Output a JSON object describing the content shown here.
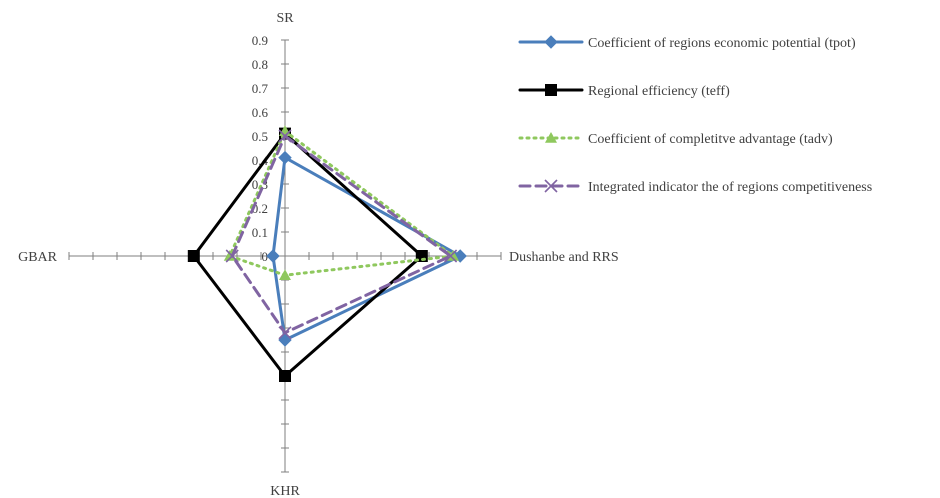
{
  "chart_data": {
    "type": "radar",
    "axes": [
      "SR",
      "Dushanbe and RRS",
      "KHR",
      "GBAR"
    ],
    "r_range": [
      0,
      0.9
    ],
    "r_ticks": [
      "0",
      "0.1",
      "0.2",
      "0.3",
      "0.4",
      "0.5",
      "0.6",
      "0.7",
      "0.8",
      "0.9"
    ],
    "legend_position": "right",
    "series": [
      {
        "name": "Coefficient of regions economic potential (tpot)",
        "values": [
          0.41,
          0.73,
          0.35,
          0.05
        ],
        "color": "#4a7ebb",
        "dash": "solid",
        "marker": "diamond"
      },
      {
        "name": "Regional efficiency (teff)",
        "values": [
          0.51,
          0.57,
          0.5,
          0.38
        ],
        "color": "#000000",
        "dash": "solid",
        "marker": "square"
      },
      {
        "name": "Coefficient of completitve advantage (tadv)",
        "values": [
          0.52,
          0.7,
          0.08,
          0.23
        ],
        "color": "#8fc85e",
        "dash": "dotted",
        "marker": "triangle"
      },
      {
        "name": "Integrated indicator the of regions competitiveness",
        "values": [
          0.5,
          0.69,
          0.32,
          0.22
        ],
        "color": "#8064a2",
        "dash": "dashed",
        "marker": "x"
      }
    ]
  }
}
